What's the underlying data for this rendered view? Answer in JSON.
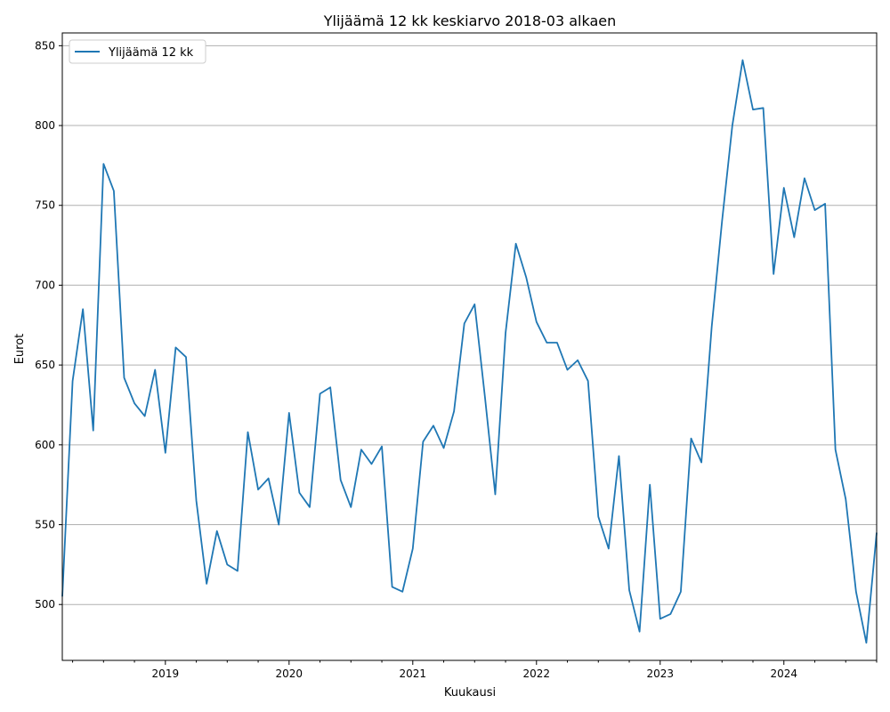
{
  "chart_data": {
    "type": "line",
    "title": "Ylijäämä 12 kk keskiarvo 2018-03 alkaen",
    "xlabel": "Kuukausi",
    "ylabel": "Eurot",
    "x_start": "2018-03",
    "x_end": "2024-10",
    "xlim": [
      "2018-03",
      "2024-10"
    ],
    "ylim": [
      465,
      858
    ],
    "xticks": [
      {
        "label": "2019",
        "date": "2019-01"
      },
      {
        "label": "2020",
        "date": "2020-01"
      },
      {
        "label": "2021",
        "date": "2021-01"
      },
      {
        "label": "2022",
        "date": "2022-01"
      },
      {
        "label": "2023",
        "date": "2023-01"
      },
      {
        "label": "2024",
        "date": "2024-01"
      }
    ],
    "yticks": [
      500,
      550,
      600,
      650,
      700,
      750,
      800,
      850
    ],
    "grid": "horizontal",
    "legend_position": "top-left",
    "series_color": "#1f77b4",
    "grid_color": "#b0b0b0",
    "series": [
      {
        "name": "Ylijäämä 12 kk",
        "x": [
          "2018-03",
          "2018-04",
          "2018-05",
          "2018-06",
          "2018-07",
          "2018-08",
          "2018-09",
          "2018-10",
          "2018-11",
          "2018-12",
          "2019-01",
          "2019-02",
          "2019-03",
          "2019-04",
          "2019-05",
          "2019-06",
          "2019-07",
          "2019-08",
          "2019-09",
          "2019-10",
          "2019-11",
          "2019-12",
          "2020-01",
          "2020-02",
          "2020-03",
          "2020-04",
          "2020-05",
          "2020-06",
          "2020-07",
          "2020-08",
          "2020-09",
          "2020-10",
          "2020-11",
          "2020-12",
          "2021-01",
          "2021-02",
          "2021-03",
          "2021-04",
          "2021-05",
          "2021-06",
          "2021-07",
          "2021-08",
          "2021-09",
          "2021-10",
          "2021-11",
          "2021-12",
          "2022-01",
          "2022-02",
          "2022-03",
          "2022-04",
          "2022-05",
          "2022-06",
          "2022-07",
          "2022-08",
          "2022-09",
          "2022-10",
          "2022-11",
          "2022-12",
          "2023-01",
          "2023-02",
          "2023-03",
          "2023-04",
          "2023-05",
          "2023-06",
          "2023-07",
          "2023-08",
          "2023-09",
          "2023-10",
          "2023-11",
          "2023-12",
          "2024-01",
          "2024-02",
          "2024-03",
          "2024-04",
          "2024-05",
          "2024-06",
          "2024-07",
          "2024-08",
          "2024-09",
          "2024-10"
        ],
        "values": [
          505,
          640,
          685,
          609,
          776,
          759,
          642,
          626,
          618,
          647,
          595,
          661,
          655,
          565,
          513,
          546,
          525,
          521,
          608,
          572,
          579,
          550,
          620,
          570,
          561,
          632,
          636,
          578,
          561,
          597,
          588,
          599,
          511,
          508,
          535,
          602,
          612,
          598,
          621,
          676,
          688,
          630,
          569,
          670,
          726,
          705,
          677,
          664,
          664,
          647,
          653,
          640,
          555,
          535,
          593,
          509,
          483,
          575,
          491,
          494,
          508,
          604,
          589,
          674,
          740,
          800,
          841,
          810,
          811,
          707,
          761,
          730,
          767,
          747,
          751,
          597,
          566,
          508,
          476,
          545
        ]
      }
    ]
  }
}
